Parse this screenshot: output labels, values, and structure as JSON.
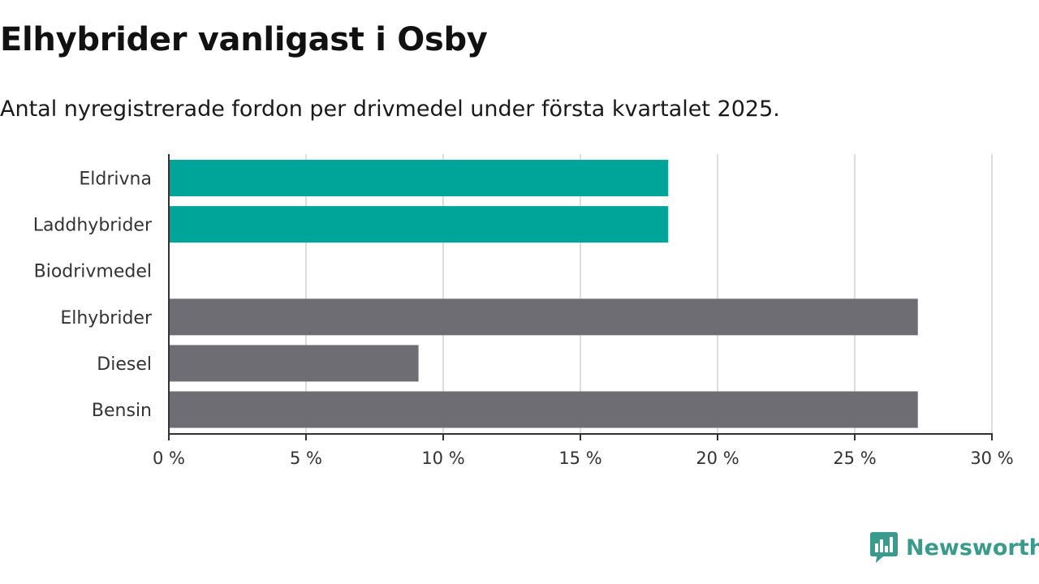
{
  "title": "Elhybrider vanligast i Osby",
  "subtitle": "Antal nyregistrerade fordon per drivmedel under första kvartalet 2025.",
  "colors": {
    "highlight": "#00a59a",
    "default": "#6e6d73",
    "grid": "#dddddd",
    "axis": "#333333",
    "logo": "#3a9a8c"
  },
  "logo": {
    "text": "Newsworthy",
    "icon": "newsworthy-chart-bubble-icon"
  },
  "chart_data": {
    "type": "bar",
    "orientation": "horizontal",
    "categories": [
      "Eldrivna",
      "Laddhybrider",
      "Biodrivmedel",
      "Elhybrider",
      "Diesel",
      "Bensin"
    ],
    "values": [
      18.2,
      18.2,
      0,
      27.3,
      9.1,
      27.3
    ],
    "highlighted": [
      true,
      true,
      true,
      false,
      false,
      false
    ],
    "xlim": [
      0,
      30
    ],
    "xticks": [
      0,
      5,
      10,
      15,
      20,
      25,
      30
    ],
    "xtick_labels": [
      "0 %",
      "5 %",
      "10 %",
      "15 %",
      "20 %",
      "25 %",
      "30 %"
    ],
    "grid": "vertical",
    "legend": "none",
    "title": "Elhybrider vanligast i Osby",
    "subtitle": "Antal nyregistrerade fordon per drivmedel under första kvartalet 2025."
  }
}
